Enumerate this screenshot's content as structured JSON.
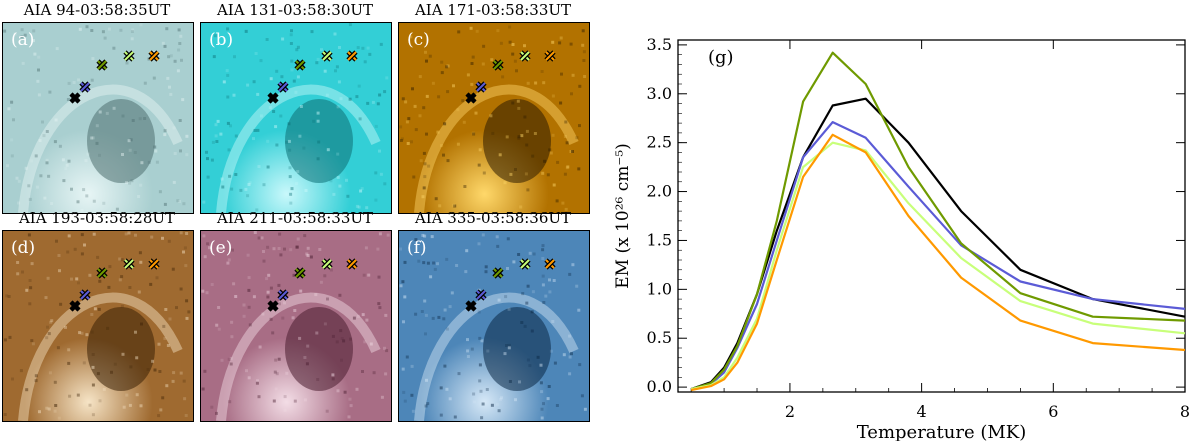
{
  "panels": [
    {
      "id": "a",
      "title": "AIA 94-03:58:35UT",
      "label": "(a)",
      "label_color": "#ffffff",
      "colors": [
        "#4f6f70",
        "#a9cfd0",
        "#e7f5f5"
      ]
    },
    {
      "id": "b",
      "title": "AIA 131-03:58:30UT",
      "label": "(b)",
      "label_color": "#ffffff",
      "colors": [
        "#0c6f75",
        "#33cfd6",
        "#c9f8fb"
      ]
    },
    {
      "id": "c",
      "title": "AIA 171-03:58:33UT",
      "label": "(c)",
      "label_color": "#ffffff",
      "colors": [
        "#2e1c00",
        "#b27200",
        "#ffd86a"
      ]
    },
    {
      "id": "d",
      "title": "AIA 193-03:58:28UT",
      "label": "(d)",
      "label_color": "#ffffff",
      "colors": [
        "#3b2105",
        "#9f6a30",
        "#f6e4c6"
      ]
    },
    {
      "id": "e",
      "title": "AIA 211-03:58:33UT",
      "label": "(e)",
      "label_color": "#ffffff",
      "colors": [
        "#4a1e30",
        "#a86d85",
        "#f3dde6"
      ]
    },
    {
      "id": "f",
      "title": "AIA 335-03:58:36UT",
      "label": "(f)",
      "label_color": "#ffffff",
      "colors": [
        "#0b2845",
        "#4d86b8",
        "#d6e8f7"
      ]
    }
  ],
  "markers": [
    {
      "color": "#000000"
    },
    {
      "color": "#5b5bd6"
    },
    {
      "color": "#6f9a00"
    },
    {
      "color": "#c8ff7a"
    },
    {
      "color": "#ff9900"
    }
  ],
  "chart_data": {
    "type": "line",
    "panel_label": "(g)",
    "xlabel": "Temperature (MK)",
    "ylabel": "EM (x 10²⁶ cm⁻⁵)",
    "xlim": [
      0.3,
      8
    ],
    "ylim": [
      -0.05,
      3.55
    ],
    "xticks": [
      "2",
      "4",
      "6",
      "8"
    ],
    "yticks": [
      "0.0",
      "0.5",
      "1.0",
      "1.5",
      "2.0",
      "2.5",
      "3.0",
      "3.5"
    ],
    "x": [
      0.5,
      0.8,
      1.0,
      1.2,
      1.5,
      1.8,
      2.2,
      2.65,
      3.15,
      3.8,
      4.6,
      5.5,
      6.6,
      8.0
    ],
    "series": [
      {
        "color": "#000000",
        "values": [
          -0.02,
          0.05,
          0.2,
          0.45,
          0.95,
          1.6,
          2.35,
          2.88,
          2.95,
          2.5,
          1.8,
          1.2,
          0.9,
          0.72
        ]
      },
      {
        "color": "#5b5bd6",
        "values": [
          -0.02,
          0.03,
          0.15,
          0.4,
          0.85,
          1.5,
          2.35,
          2.71,
          2.55,
          2.05,
          1.45,
          1.08,
          0.9,
          0.8
        ]
      },
      {
        "color": "#6f9a00",
        "values": [
          -0.02,
          0.04,
          0.18,
          0.42,
          0.95,
          1.7,
          2.92,
          3.42,
          3.1,
          2.25,
          1.47,
          0.96,
          0.72,
          0.68
        ]
      },
      {
        "color": "#c8ff7a",
        "values": [
          -0.02,
          0.02,
          0.1,
          0.3,
          0.7,
          1.4,
          2.25,
          2.5,
          2.42,
          1.88,
          1.32,
          0.88,
          0.65,
          0.55
        ]
      },
      {
        "color": "#ff9900",
        "values": [
          -0.03,
          0.01,
          0.08,
          0.25,
          0.65,
          1.3,
          2.15,
          2.58,
          2.4,
          1.75,
          1.12,
          0.68,
          0.45,
          0.38
        ]
      }
    ]
  }
}
